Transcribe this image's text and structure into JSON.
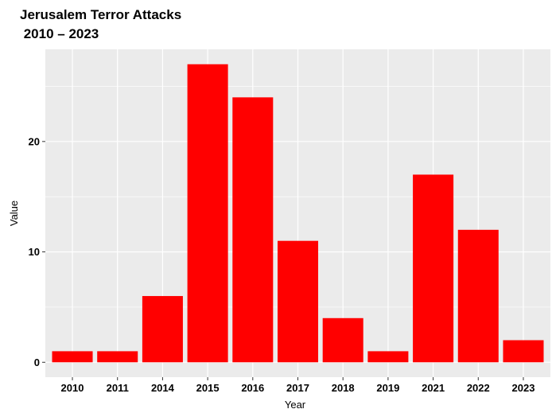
{
  "chart_data": {
    "type": "bar",
    "title_line1": "Jerusalem Terror Attacks",
    "title_line2": " 2010 – 2023",
    "xlabel": "Year",
    "ylabel": "Value",
    "categories": [
      "2010",
      "2011",
      "2014",
      "2015",
      "2016",
      "2017",
      "2018",
      "2019",
      "2021",
      "2022",
      "2023"
    ],
    "values": [
      1,
      1,
      6,
      27,
      24,
      11,
      4,
      1,
      17,
      12,
      2
    ],
    "y_ticks": [
      0,
      10,
      20
    ],
    "ylim": [
      -1.35,
      28.35
    ],
    "grid": true,
    "colors": {
      "bar": "#ff0000",
      "panel": "#ebebeb",
      "grid": "#ffffff"
    }
  }
}
